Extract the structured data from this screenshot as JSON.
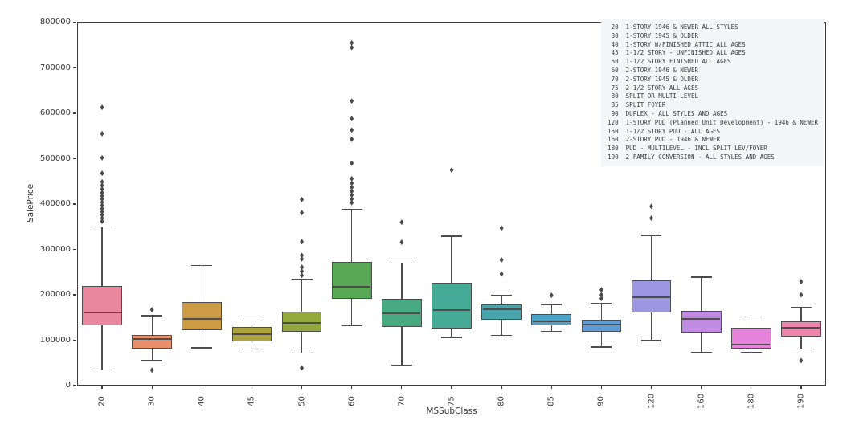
{
  "figure": {
    "ylabel": "SalePrice",
    "xlabel": "MSSubClass"
  },
  "legend": {
    "background": "#f4f5f7",
    "entries": [
      {
        "code": "20",
        "label": "1-STORY 1946 & NEWER ALL STYLES"
      },
      {
        "code": "30",
        "label": "1-STORY 1945 & OLDER"
      },
      {
        "code": "40",
        "label": "1-STORY W/FINISHED ATTIC ALL AGES"
      },
      {
        "code": "45",
        "label": "1-1/2 STORY - UNFINISHED ALL AGES"
      },
      {
        "code": "50",
        "label": "1-1/2 STORY FINISHED ALL AGES"
      },
      {
        "code": "60",
        "label": "2-STORY 1946 & NEWER"
      },
      {
        "code": "70",
        "label": "2-STORY 1945 & OLDER"
      },
      {
        "code": "75",
        "label": "2-1/2 STORY ALL AGES"
      },
      {
        "code": "80",
        "label": "SPLIT OR MULTI-LEVEL"
      },
      {
        "code": "85",
        "label": "SPLIT FOYER"
      },
      {
        "code": "90",
        "label": "DUPLEX - ALL STYLES AND AGES"
      },
      {
        "code": "120",
        "label": "1-STORY PUD (Planned Unit Development) - 1946 & NEWER"
      },
      {
        "code": "150",
        "label": "1-1/2 STORY PUD - ALL AGES"
      },
      {
        "code": "160",
        "label": "2-STORY PUD - 1946 & NEWER"
      },
      {
        "code": "180",
        "label": "PUD - MULTILEVEL - INCL SPLIT LEV/FOYER"
      },
      {
        "code": "190",
        "label": "2 FAMILY CONVERSION - ALL STYLES AND AGES"
      }
    ]
  },
  "chart_data": {
    "type": "box",
    "title": "",
    "xlabel": "MSSubClass",
    "ylabel": "SalePrice",
    "ylim": [
      0,
      800000
    ],
    "yticks": [
      0,
      100000,
      200000,
      300000,
      400000,
      500000,
      600000,
      700000,
      800000
    ],
    "grid": false,
    "legend_position": "upper right",
    "line_color": "#4d4d4d",
    "categories": [
      "20",
      "30",
      "40",
      "45",
      "50",
      "60",
      "70",
      "75",
      "80",
      "85",
      "90",
      "120",
      "160",
      "180",
      "190"
    ],
    "series": [
      {
        "category": "20",
        "whisker_low": 35000,
        "q1": 133000,
        "median": 160000,
        "q3": 220000,
        "whisker_high": 350000,
        "color": "#e9879c",
        "outliers": [
          362000,
          369000,
          376000,
          383000,
          390000,
          397000,
          404000,
          411000,
          418000,
          425000,
          433000,
          441000,
          449000,
          468000,
          502000,
          555000,
          613000
        ]
      },
      {
        "category": "30",
        "whisker_low": 55000,
        "q1": 82000,
        "median": 103000,
        "q3": 112000,
        "whisker_high": 154000,
        "color": "#e8906b",
        "outliers": [
          34000,
          167000
        ]
      },
      {
        "category": "40",
        "whisker_low": 83000,
        "q1": 122000,
        "median": 147000,
        "q3": 184000,
        "whisker_high": 265000,
        "color": "#ce9b45",
        "outliers": []
      },
      {
        "category": "45",
        "whisker_low": 81000,
        "q1": 97000,
        "median": 113000,
        "q3": 129000,
        "whisker_high": 143000,
        "color": "#aca23f",
        "outliers": []
      },
      {
        "category": "50",
        "whisker_low": 72000,
        "q1": 118000,
        "median": 138000,
        "q3": 162000,
        "whisker_high": 235000,
        "color": "#94a83e",
        "outliers": [
          39000,
          243000,
          252000,
          261000,
          279000,
          287000,
          317000,
          381000,
          410000
        ]
      },
      {
        "category": "60",
        "whisker_low": 132000,
        "q1": 191000,
        "median": 217000,
        "q3": 272000,
        "whisker_high": 389000,
        "color": "#58a855",
        "outliers": [
          403000,
          411000,
          420000,
          428000,
          437000,
          446000,
          456000,
          490000,
          543000,
          563000,
          588000,
          627000,
          745000,
          755000
        ]
      },
      {
        "category": "70",
        "whisker_low": 44000,
        "q1": 129000,
        "median": 159000,
        "q3": 191000,
        "whisker_high": 270000,
        "color": "#47aa80",
        "outliers": [
          316000,
          360000
        ]
      },
      {
        "category": "75",
        "whisker_low": 106000,
        "q1": 125000,
        "median": 166000,
        "q3": 226000,
        "whisker_high": 329000,
        "color": "#45ab97",
        "outliers": [
          475000
        ]
      },
      {
        "category": "80",
        "whisker_low": 110000,
        "q1": 145000,
        "median": 168000,
        "q3": 179000,
        "whisker_high": 199000,
        "color": "#48a3ad",
        "outliers": [
          246000,
          277000,
          347000
        ]
      },
      {
        "category": "85",
        "whisker_low": 120000,
        "q1": 133000,
        "median": 141000,
        "q3": 158000,
        "whisker_high": 179000,
        "color": "#4aa2c6",
        "outliers": [
          199000
        ]
      },
      {
        "category": "90",
        "whisker_low": 85000,
        "q1": 119000,
        "median": 135000,
        "q3": 145000,
        "whisker_high": 181000,
        "color": "#5e9dd8",
        "outliers": [
          192000,
          200000,
          211000
        ]
      },
      {
        "category": "120",
        "whisker_low": 99000,
        "q1": 161000,
        "median": 195000,
        "q3": 232000,
        "whisker_high": 331000,
        "color": "#9a96e0",
        "outliers": [
          369000,
          395000
        ]
      },
      {
        "category": "160",
        "whisker_low": 74000,
        "q1": 117000,
        "median": 147000,
        "q3": 165000,
        "whisker_high": 239000,
        "color": "#c08ce2",
        "outliers": []
      },
      {
        "category": "180",
        "whisker_low": 74000,
        "q1": 81000,
        "median": 90000,
        "q3": 128000,
        "whisker_high": 151000,
        "color": "#e583db",
        "outliers": []
      },
      {
        "category": "190",
        "whisker_low": 81000,
        "q1": 108000,
        "median": 128000,
        "q3": 142000,
        "whisker_high": 172000,
        "color": "#ee86ab",
        "outliers": [
          55000,
          200000,
          229000
        ]
      }
    ]
  }
}
